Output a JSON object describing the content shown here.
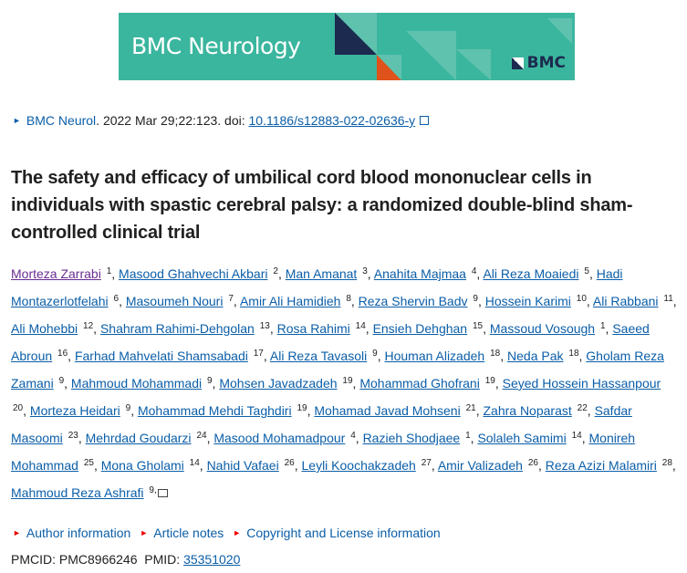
{
  "banner": {
    "journal_title": "BMC Neurology",
    "publisher": "BMC",
    "colors": {
      "teal": "#3bb69e",
      "navy": "#1b2a4e",
      "orange": "#e0521b"
    }
  },
  "citation": {
    "journal": "BMC Neurol",
    "date": ". 2022 Mar 29;22:123. doi: ",
    "doi": "10.1186/s12883-022-02636-y",
    "icon": "external-link-icon"
  },
  "title": "The safety and efficacy of umbilical cord blood mononuclear cells in individuals with spastic cerebral palsy: a randomized double-blind sham-controlled clinical trial",
  "authors": [
    {
      "name": "Morteza Zarrabi",
      "sup": "1"
    },
    {
      "name": "Masood Ghahvechi Akbari",
      "sup": "2"
    },
    {
      "name": "Man Amanat",
      "sup": "3"
    },
    {
      "name": "Anahita Majmaa",
      "sup": "4"
    },
    {
      "name": "Ali Reza Moaiedi",
      "sup": "5"
    },
    {
      "name": "Hadi Montazerlotfelahi",
      "sup": "6"
    },
    {
      "name": "Masoumeh Nouri",
      "sup": "7"
    },
    {
      "name": "Amir Ali Hamidieh",
      "sup": "8"
    },
    {
      "name": "Reza Shervin Badv",
      "sup": "9"
    },
    {
      "name": "Hossein Karimi",
      "sup": "10"
    },
    {
      "name": "Ali Rabbani",
      "sup": "11"
    },
    {
      "name": "Ali Mohebbi",
      "sup": "12"
    },
    {
      "name": "Shahram Rahimi-Dehgolan",
      "sup": "13"
    },
    {
      "name": "Rosa Rahimi",
      "sup": "14"
    },
    {
      "name": "Ensieh Dehghan",
      "sup": "15"
    },
    {
      "name": "Massoud Vosough",
      "sup": "1"
    },
    {
      "name": "Saeed Abroun",
      "sup": "16"
    },
    {
      "name": "Farhad Mahvelati Shamsabadi",
      "sup": "17"
    },
    {
      "name": "Ali Reza Tavasoli",
      "sup": "9"
    },
    {
      "name": "Houman Alizadeh",
      "sup": "18"
    },
    {
      "name": "Neda Pak",
      "sup": "18"
    },
    {
      "name": "Gholam Reza Zamani",
      "sup": "9"
    },
    {
      "name": "Mahmoud Mohammadi",
      "sup": "9"
    },
    {
      "name": "Mohsen Javadzadeh",
      "sup": "19"
    },
    {
      "name": "Mohammad Ghofrani",
      "sup": "19"
    },
    {
      "name": "Seyed Hossein Hassanpour",
      "sup": "20"
    },
    {
      "name": "Morteza Heidari",
      "sup": "9"
    },
    {
      "name": "Mohammad Mehdi Taghdiri",
      "sup": "19"
    },
    {
      "name": "Mohamad Javad Mohseni",
      "sup": "21"
    },
    {
      "name": "Zahra Noparast",
      "sup": "22"
    },
    {
      "name": "Safdar Masoomi",
      "sup": "23"
    },
    {
      "name": "Mehrdad Goudarzi",
      "sup": "24"
    },
    {
      "name": "Masood Mohamadpour",
      "sup": "4"
    },
    {
      "name": "Razieh Shodjaee",
      "sup": "1"
    },
    {
      "name": "Solaleh Samimi",
      "sup": "14"
    },
    {
      "name": "Monireh Mohammad",
      "sup": "25"
    },
    {
      "name": "Mona Gholami",
      "sup": "14"
    },
    {
      "name": "Nahid Vafaei",
      "sup": "26"
    },
    {
      "name": "Leyli Koochakzadeh",
      "sup": "27"
    },
    {
      "name": "Amir Valizadeh",
      "sup": "26"
    },
    {
      "name": "Reza Azizi Malamiri",
      "sup": "28"
    },
    {
      "name": "Mahmoud Reza Ashrafi",
      "sup": "9,",
      "mail": true
    }
  ],
  "notes": [
    "Author information",
    "Article notes",
    "Copyright and License information"
  ],
  "ids": {
    "pmcid_label": "PMCID: PMC8966246",
    "pmid_label": "PMID: ",
    "pmid": "35351020"
  }
}
